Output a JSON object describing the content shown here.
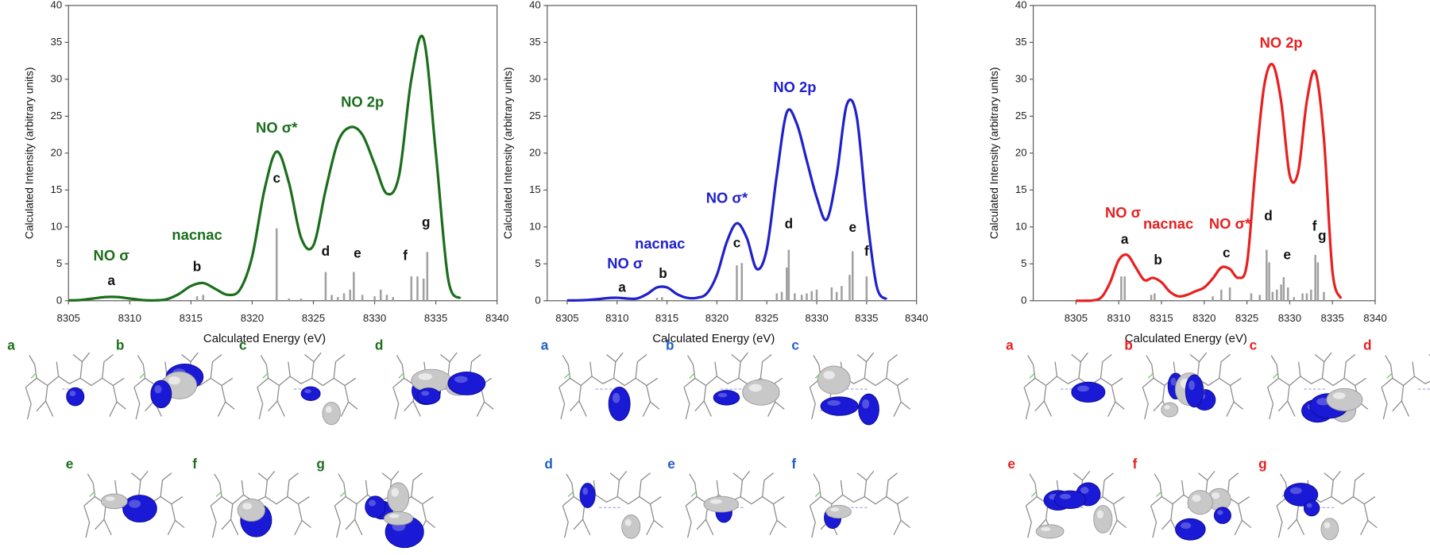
{
  "chart_data": [
    {
      "type": "line",
      "color": "#1b6e1b",
      "x": [
        8305,
        8306,
        8307,
        8308,
        8309,
        8310,
        8311,
        8312,
        8313,
        8314,
        8315,
        8316,
        8317,
        8318,
        8319,
        8320,
        8321,
        8322,
        8323,
        8324,
        8325,
        8326,
        8327,
        8328,
        8329,
        8330,
        8331,
        8332,
        8333,
        8334,
        8335,
        8336,
        8337
      ],
      "values": [
        0.05,
        0.1,
        0.3,
        0.5,
        0.5,
        0.3,
        0.1,
        0.05,
        0.2,
        0.9,
        2.0,
        2.4,
        1.6,
        0.8,
        1.5,
        6,
        15,
        20.2,
        16,
        8.5,
        7.5,
        15,
        21.5,
        23.5,
        22.5,
        18.5,
        14.5,
        17,
        30,
        35.5,
        20,
        3,
        0.3
      ],
      "stick_color": "#a0a0a0",
      "stick_x": [
        8315.5,
        8316,
        8322,
        8323,
        8324,
        8326,
        8326.5,
        8327,
        8327.5,
        8328,
        8328.3,
        8329,
        8330,
        8330.5,
        8331,
        8331.5,
        8333,
        8333.5,
        8334,
        8334.3
      ],
      "stick_values": [
        0.6,
        0.8,
        9.8,
        0.3,
        0.3,
        3.9,
        0.8,
        0.5,
        1.0,
        1.5,
        3.9,
        0.8,
        0.6,
        1.5,
        0.8,
        0.5,
        3.3,
        3.3,
        3.0,
        6.6
      ],
      "annotations": [
        "NO σ",
        "nacnac",
        "NO σ*",
        "NO 2p"
      ],
      "peak_labels": [
        "a",
        "b",
        "c",
        "d",
        "e",
        "f",
        "g"
      ],
      "xlim": [
        8305,
        8340
      ],
      "xticks": [
        8305,
        8310,
        8315,
        8320,
        8325,
        8330,
        8335,
        8340
      ],
      "ylim": [
        0,
        40
      ],
      "yticks": [
        0,
        5,
        10,
        15,
        20,
        25,
        30,
        35,
        40
      ],
      "xlabel": "Calculated Energy (eV)",
      "ylabel": "Calculated Intensity (arbitrary units)"
    },
    {
      "type": "line",
      "color": "#2020cc",
      "x": [
        8305,
        8306,
        8307,
        8308,
        8309,
        8310,
        8311,
        8312,
        8313,
        8314,
        8315,
        8316,
        8317,
        8318,
        8319,
        8320,
        8321,
        8322,
        8323,
        8324,
        8325,
        8326,
        8327,
        8328,
        8329,
        8330,
        8331,
        8332,
        8333,
        8334,
        8335,
        8336,
        8337
      ],
      "values": [
        0.05,
        0.05,
        0.1,
        0.2,
        0.35,
        0.4,
        0.3,
        0.3,
        0.9,
        1.8,
        1.8,
        0.9,
        0.4,
        0.4,
        1,
        3.5,
        8,
        10.5,
        8.5,
        4.3,
        7,
        17,
        25.5,
        24,
        19,
        14,
        11,
        17,
        26.5,
        25,
        12,
        2,
        0.2
      ],
      "stick_color": "#a0a0a0",
      "stick_x": [
        8314,
        8314.5,
        8322,
        8322.5,
        8326,
        8326.5,
        8327,
        8327.2,
        8327.8,
        8328.5,
        8329,
        8329.5,
        8330,
        8331.5,
        8332,
        8332.5,
        8333.3,
        8333.6,
        8335
      ],
      "stick_values": [
        0.4,
        0.5,
        4.8,
        5.1,
        1,
        1.2,
        4.5,
        6.9,
        1.0,
        0.8,
        1.0,
        1.3,
        1.5,
        1.8,
        1.2,
        2.0,
        3.5,
        6.7,
        3.3
      ],
      "annotations": [
        "NO σ",
        "nacnac",
        "NO σ*",
        "NO 2p"
      ],
      "peak_labels": [
        "a",
        "b",
        "c",
        "d",
        "e",
        "f"
      ],
      "xlim": [
        8303,
        8340
      ],
      "xticks": [
        8305,
        8310,
        8315,
        8320,
        8325,
        8330,
        8335,
        8340
      ],
      "ylim": [
        0,
        40
      ],
      "yticks": [
        0,
        5,
        10,
        15,
        20,
        25,
        30,
        35,
        40
      ],
      "xlabel": "Calculated Energy (eV)",
      "ylabel": "Calculated Intensity (arbitrary units)"
    },
    {
      "type": "line",
      "color": "#e82020",
      "x": [
        8305,
        8306,
        8307,
        8308,
        8309,
        8310,
        8311,
        8312,
        8313,
        8314,
        8315,
        8316,
        8317,
        8318,
        8319,
        8320,
        8321,
        8322,
        8323,
        8324,
        8325,
        8326,
        8327,
        8328,
        8329,
        8330,
        8331,
        8332,
        8333,
        8334,
        8335,
        8336
      ],
      "values": [
        0,
        0,
        0.05,
        0.5,
        2.5,
        5.5,
        6.2,
        4.5,
        2.8,
        3.1,
        2.5,
        1.2,
        0.6,
        0.8,
        1.3,
        1.8,
        3,
        4.5,
        4.3,
        3.1,
        5,
        18,
        29,
        32,
        27,
        17,
        17.5,
        27,
        31,
        22,
        4,
        0.3
      ],
      "stick_color": "#a0a0a0",
      "stick_x": [
        8310.3,
        8310.7,
        8313.8,
        8314.2,
        8321,
        8322,
        8323,
        8325.5,
        8326.5,
        8327.3,
        8327.6,
        8328,
        8328.5,
        8329,
        8329.3,
        8329.8,
        8330.5,
        8331.5,
        8332,
        8332.5,
        8333,
        8333.3,
        8334
      ],
      "stick_values": [
        3.3,
        3.3,
        0.8,
        1,
        0.6,
        1.5,
        1.8,
        1.0,
        0.8,
        6.9,
        5.2,
        1.2,
        1.5,
        2.2,
        3.2,
        1.8,
        0.5,
        1.0,
        1.0,
        1.5,
        6.2,
        5.2,
        1.2
      ],
      "annotations": [
        "NO σ",
        "nacnac",
        "NO σ*",
        "NO 2p"
      ],
      "peak_labels": [
        "a",
        "b",
        "c",
        "d",
        "e",
        "f",
        "g"
      ],
      "xlim": [
        8300,
        8340
      ],
      "xticks": [
        8305,
        8310,
        8315,
        8320,
        8325,
        8330,
        8335,
        8340
      ],
      "ylim": [
        0,
        40
      ],
      "yticks": [
        0,
        5,
        10,
        15,
        20,
        25,
        30,
        35,
        40
      ],
      "xlabel": "Calculated Energy (eV)",
      "ylabel": "Calculated Intensity (arbitrary units)"
    }
  ],
  "orbitals": [
    {
      "color": "#1b6e1b",
      "labels": [
        "a",
        "b",
        "c",
        "d",
        "e",
        "f",
        "g"
      ]
    },
    {
      "color": "#1f5fc8",
      "labels": [
        "a",
        "b",
        "c",
        "d",
        "e",
        "f"
      ]
    },
    {
      "color": "#e82020",
      "labels": [
        "a",
        "b",
        "c",
        "d",
        "e",
        "f",
        "g"
      ]
    }
  ]
}
